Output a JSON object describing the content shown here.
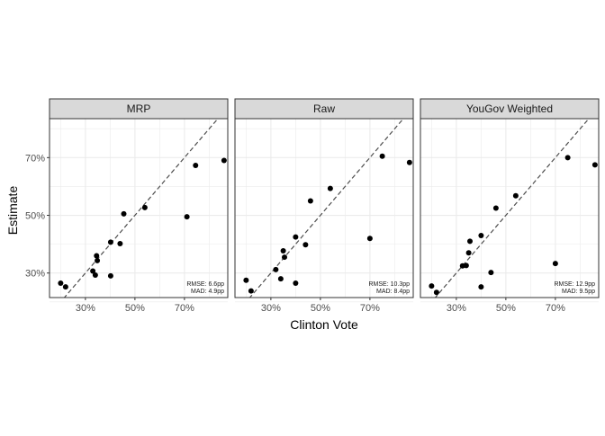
{
  "chart_data": {
    "type": "scatter",
    "xlabel": "Clinton Vote",
    "ylabel": "Estimate",
    "xlim": [
      15.5,
      87.5
    ],
    "ylim": [
      21.5,
      83.5
    ],
    "xticks": [
      30,
      50,
      70
    ],
    "yticks": [
      30,
      50,
      70
    ],
    "x_tick_labels": [
      "30%",
      "50%",
      "70%"
    ],
    "y_tick_labels": [
      "30%",
      "50%",
      "70%"
    ],
    "grid": true,
    "reference_line": "y = x (dashed)",
    "colors": {
      "points": "#000000",
      "strip": "#d9d9d9",
      "grid": "#ebebeb",
      "panel_border": "#333333",
      "reference_line": "#4d4d4d"
    },
    "panels": [
      {
        "title": "MRP",
        "rmse": "RMSE: 6.6pp",
        "mad": "MAD: 4.9pp",
        "points": [
          {
            "x": 20.0,
            "y": 26.5
          },
          {
            "x": 22.0,
            "y": 25.2
          },
          {
            "x": 33.0,
            "y": 30.7
          },
          {
            "x": 34.0,
            "y": 29.3
          },
          {
            "x": 34.5,
            "y": 36.0
          },
          {
            "x": 34.8,
            "y": 34.3
          },
          {
            "x": 40.2,
            "y": 29.0
          },
          {
            "x": 40.2,
            "y": 40.7
          },
          {
            "x": 44.0,
            "y": 40.2
          },
          {
            "x": 45.5,
            "y": 50.5
          },
          {
            "x": 54.0,
            "y": 52.7
          },
          {
            "x": 71.0,
            "y": 49.5
          },
          {
            "x": 74.5,
            "y": 67.3
          },
          {
            "x": 86.0,
            "y": 69.0
          }
        ]
      },
      {
        "title": "Raw",
        "rmse": "RMSE: 10.3pp",
        "mad": "MAD: 8.4pp",
        "points": [
          {
            "x": 20.0,
            "y": 27.5
          },
          {
            "x": 22.0,
            "y": 23.8
          },
          {
            "x": 32.0,
            "y": 31.2
          },
          {
            "x": 34.0,
            "y": 28.0
          },
          {
            "x": 35.0,
            "y": 37.7
          },
          {
            "x": 35.5,
            "y": 35.5
          },
          {
            "x": 40.0,
            "y": 42.5
          },
          {
            "x": 40.0,
            "y": 26.5
          },
          {
            "x": 44.0,
            "y": 39.8
          },
          {
            "x": 46.0,
            "y": 55.0
          },
          {
            "x": 54.0,
            "y": 59.3
          },
          {
            "x": 70.0,
            "y": 42.0
          },
          {
            "x": 75.0,
            "y": 70.5
          },
          {
            "x": 86.0,
            "y": 68.3
          }
        ]
      },
      {
        "title": "YouGov Weighted",
        "rmse": "RMSE: 12.9pp",
        "mad": "MAD: 9.5pp",
        "points": [
          {
            "x": 20.0,
            "y": 25.5
          },
          {
            "x": 22.0,
            "y": 23.3
          },
          {
            "x": 32.5,
            "y": 32.5
          },
          {
            "x": 34.0,
            "y": 32.6
          },
          {
            "x": 35.0,
            "y": 37.0
          },
          {
            "x": 35.5,
            "y": 41.0
          },
          {
            "x": 40.0,
            "y": 43.0
          },
          {
            "x": 40.0,
            "y": 25.2
          },
          {
            "x": 44.0,
            "y": 30.2
          },
          {
            "x": 46.0,
            "y": 52.5
          },
          {
            "x": 54.0,
            "y": 56.8
          },
          {
            "x": 70.0,
            "y": 33.3
          },
          {
            "x": 75.0,
            "y": 70.0
          },
          {
            "x": 86.0,
            "y": 67.5
          }
        ]
      }
    ]
  }
}
